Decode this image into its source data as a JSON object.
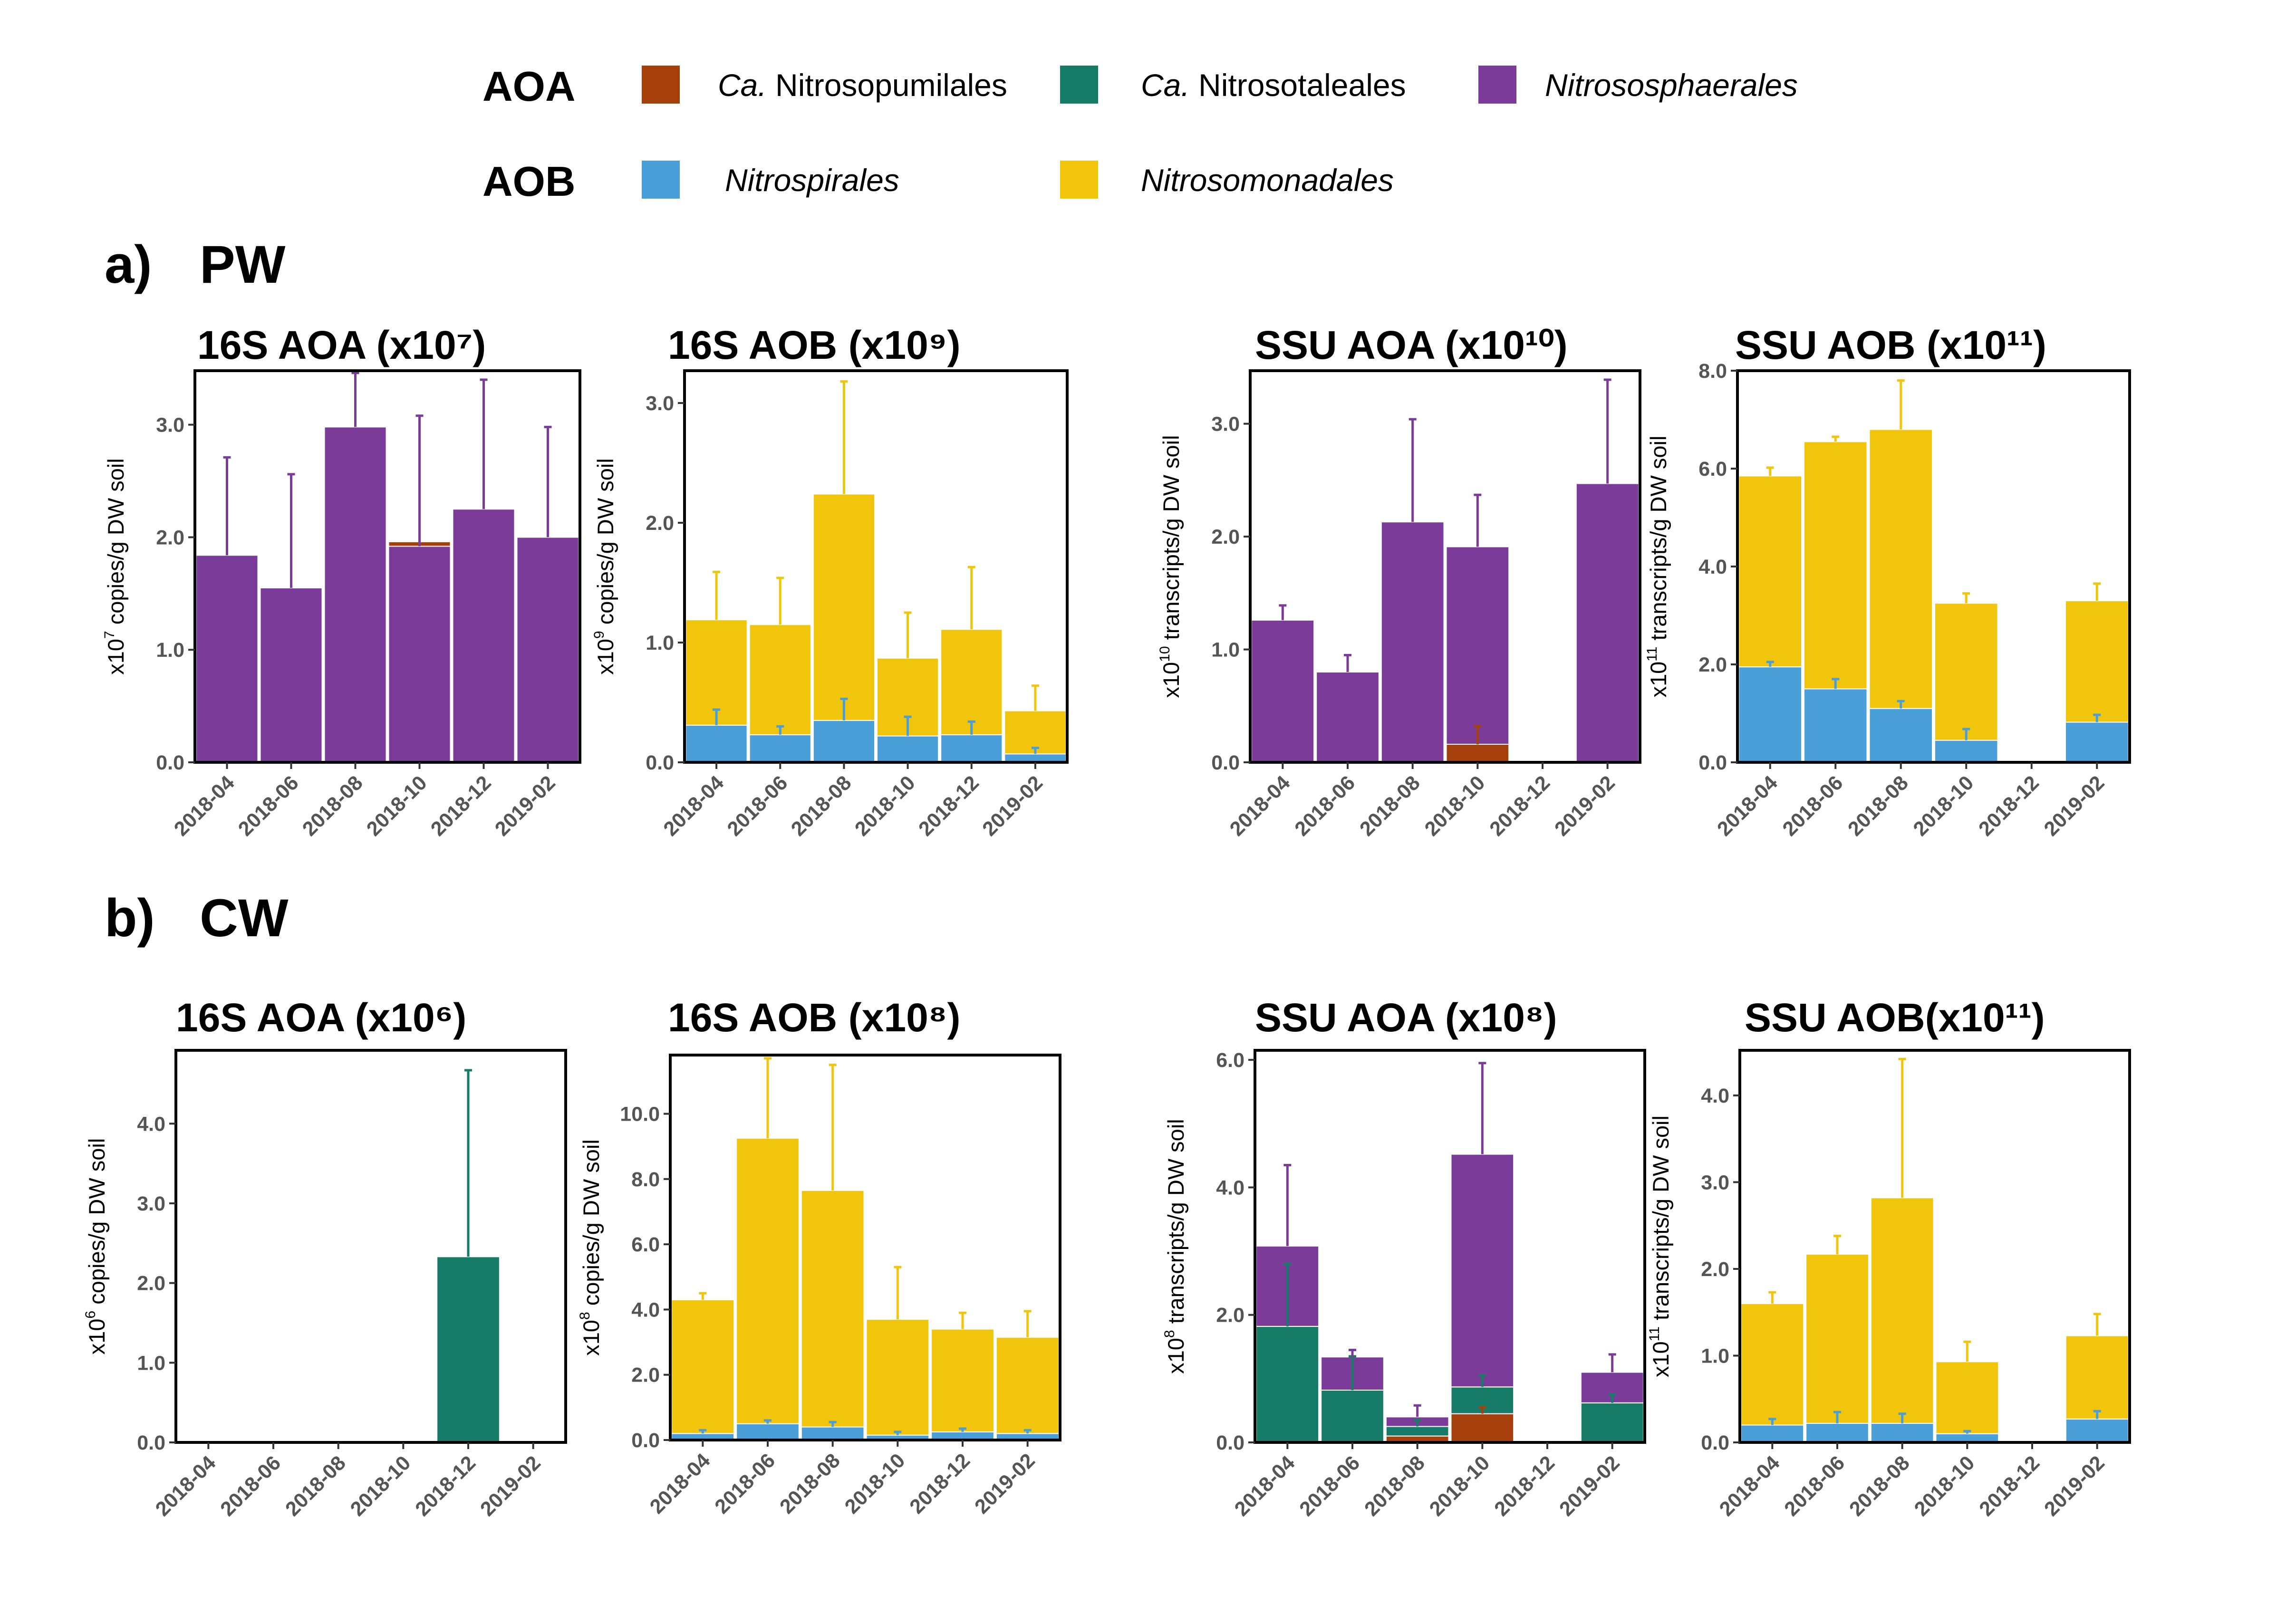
{
  "legend": {
    "groups": [
      {
        "label": "AOA",
        "items": [
          {
            "prefix": "Ca.",
            "name": "Nitrosopumilales",
            "color": "#A53F0B"
          },
          {
            "prefix": "Ca.",
            "name": "Nitrosotaleales",
            "color": "#167C67"
          },
          {
            "prefix": "",
            "name": "Nitrososphaerales",
            "color": "#7B3B98"
          }
        ]
      },
      {
        "label": "AOB",
        "items": [
          {
            "prefix": "",
            "name": "Nitrospirales",
            "color": "#4A9FD9"
          },
          {
            "prefix": "",
            "name": "Nitrosomonadales",
            "color": "#F0C50C"
          }
        ]
      }
    ]
  },
  "sections": [
    {
      "tag": "a)",
      "name": "PW"
    },
    {
      "tag": "b)",
      "name": "CW"
    }
  ],
  "colors": {
    "Ca. Nitrosopumilales": "#A53F0B",
    "Ca. Nitrosotaleales": "#167C67",
    "Nitrososphaerales": "#7B3B98",
    "Nitrospirales": "#4A9FD9",
    "Nitrosomonadales": "#F0C50C"
  },
  "chart_data": [
    {
      "type": "bar",
      "stacked": true,
      "title": "16S AOA (x10⁷)",
      "ylabel_base": "x10",
      "ylabel_exp": "7",
      "ylabel_rest": " copies/g DW soil",
      "categories": [
        "2018-04",
        "2018-06",
        "2018-08",
        "2018-10",
        "2018-12",
        "2019-02"
      ],
      "ylim": [
        0,
        3.48
      ],
      "yticks": [
        "0.0",
        "1.0",
        "2.0",
        "3.0"
      ],
      "series": [
        {
          "name": "Nitrososphaerales",
          "values": [
            1.84,
            1.55,
            2.98,
            1.92,
            2.25,
            2.0
          ],
          "errors": [
            2.71,
            2.56,
            3.46,
            3.08,
            3.4,
            2.98
          ]
        },
        {
          "name": "Ca. Nitrosopumilales",
          "values": [
            0,
            0,
            0,
            0.04,
            0,
            0
          ],
          "errors": [
            null,
            null,
            null,
            null,
            null,
            null
          ]
        }
      ]
    },
    {
      "type": "bar",
      "stacked": true,
      "title": "16S AOB (x10⁹)",
      "ylabel_base": "x10",
      "ylabel_exp": "9",
      "ylabel_rest": " copies/g DW soil",
      "categories": [
        "2018-04",
        "2018-06",
        "2018-08",
        "2018-10",
        "2018-12",
        "2019-02"
      ],
      "ylim": [
        0,
        3.27
      ],
      "yticks": [
        "0.0",
        "1.0",
        "2.0",
        "3.0"
      ],
      "series": [
        {
          "name": "Nitrospirales",
          "values": [
            0.31,
            0.23,
            0.35,
            0.22,
            0.23,
            0.07
          ],
          "errors": [
            0.44,
            0.3,
            0.53,
            0.38,
            0.34,
            0.12
          ]
        },
        {
          "name": "Nitrosomonadales",
          "values": [
            0.88,
            0.92,
            1.89,
            0.65,
            0.88,
            0.36
          ],
          "errors": [
            1.59,
            1.54,
            3.18,
            1.25,
            1.63,
            0.64
          ]
        }
      ]
    },
    {
      "type": "bar",
      "stacked": true,
      "title": "SSU AOA (x10¹⁰)",
      "ylabel_base": "x10",
      "ylabel_exp": "10",
      "ylabel_rest": " transcripts/g DW soil",
      "categories": [
        "2018-04",
        "2018-06",
        "2018-08",
        "2018-10",
        "2018-12",
        "2019-02"
      ],
      "ylim": [
        0,
        3.47
      ],
      "yticks": [
        "0.0",
        "1.0",
        "2.0",
        "3.0"
      ],
      "series": [
        {
          "name": "Ca. Nitrosopumilales",
          "values": [
            0,
            0,
            0,
            0.16,
            0,
            0
          ],
          "errors": [
            null,
            null,
            null,
            0.32,
            null,
            null
          ]
        },
        {
          "name": "Nitrososphaerales",
          "values": [
            1.26,
            0.8,
            2.13,
            1.75,
            0,
            2.47
          ],
          "errors": [
            1.39,
            0.95,
            3.04,
            2.37,
            null,
            3.39
          ]
        }
      ]
    },
    {
      "type": "bar",
      "stacked": true,
      "title": "SSU AOB (x10¹¹)",
      "ylabel_base": "x10",
      "ylabel_exp": "11",
      "ylabel_rest": " transcripts/g DW soil",
      "categories": [
        "2018-04",
        "2018-06",
        "2018-08",
        "2018-10",
        "2018-12",
        "2019-02"
      ],
      "ylim": [
        0,
        8.0
      ],
      "yticks": [
        "0.0",
        "2.0",
        "4.0",
        "6.0",
        "8.0"
      ],
      "series": [
        {
          "name": "Nitrospirales",
          "values": [
            1.95,
            1.5,
            1.1,
            0.45,
            0,
            0.82
          ],
          "errors": [
            2.05,
            1.7,
            1.25,
            0.68,
            null,
            0.97
          ]
        },
        {
          "name": "Nitrosomonadales",
          "values": [
            3.9,
            5.05,
            5.7,
            2.8,
            0,
            2.48
          ],
          "errors": [
            6.02,
            6.65,
            7.8,
            3.45,
            null,
            3.65
          ]
        }
      ]
    },
    {
      "type": "bar",
      "stacked": true,
      "title": "16S AOA (x10⁶)",
      "ylabel_base": "x10",
      "ylabel_exp": "6",
      "ylabel_rest": " copies/g DW soil",
      "categories": [
        "2018-04",
        "2018-06",
        "2018-08",
        "2018-10",
        "2018-12",
        "2019-02"
      ],
      "ylim": [
        0,
        4.92
      ],
      "yticks": [
        "0.0",
        "1.0",
        "2.0",
        "3.0",
        "4.0"
      ],
      "series": [
        {
          "name": "Ca. Nitrosotaleales",
          "values": [
            0,
            0,
            0,
            0,
            2.33,
            0
          ],
          "errors": [
            null,
            null,
            null,
            null,
            4.67,
            null
          ]
        }
      ]
    },
    {
      "type": "bar",
      "stacked": true,
      "title": "16S AOB (x10⁸)",
      "ylabel_base": "x10",
      "ylabel_exp": "8",
      "ylabel_rest": " copies/g DW soil",
      "categories": [
        "2018-04",
        "2018-06",
        "2018-08",
        "2018-10",
        "2018-12",
        "2019-02"
      ],
      "ylim": [
        0,
        11.8
      ],
      "yticks": [
        "0.0",
        "2.0",
        "4.0",
        "6.0",
        "8.0",
        "10.0"
      ],
      "series": [
        {
          "name": "Nitrospirales",
          "values": [
            0.2,
            0.5,
            0.4,
            0.15,
            0.25,
            0.2
          ],
          "errors": [
            0.3,
            0.6,
            0.55,
            0.25,
            0.35,
            0.3
          ]
        },
        {
          "name": "Nitrosomonadales",
          "values": [
            4.1,
            8.75,
            7.25,
            3.55,
            3.15,
            2.95
          ],
          "errors": [
            4.5,
            11.7,
            11.5,
            5.3,
            3.9,
            3.95
          ]
        }
      ]
    },
    {
      "type": "bar",
      "stacked": true,
      "title": "SSU AOA (x10⁸)",
      "ylabel_base": "x10",
      "ylabel_exp": "8",
      "ylabel_rest": " transcripts/g DW soil",
      "categories": [
        "2018-04",
        "2018-06",
        "2018-08",
        "2018-10",
        "2018-12",
        "2019-02"
      ],
      "ylim": [
        0,
        6.15
      ],
      "yticks": [
        "0.0",
        "2.0",
        "4.0",
        "6.0"
      ],
      "series": [
        {
          "name": "Ca. Nitrosopumilales",
          "values": [
            0,
            0,
            0.1,
            0.45,
            0,
            0
          ],
          "errors": [
            null,
            null,
            null,
            0.55,
            null,
            null
          ]
        },
        {
          "name": "Ca. Nitrosotaleales",
          "values": [
            1.82,
            0.82,
            0.15,
            0.42,
            0,
            0.62
          ],
          "errors": [
            2.8,
            1.35,
            0.35,
            1.05,
            null,
            0.75
          ]
        },
        {
          "name": "Nitrososphaerales",
          "values": [
            1.26,
            0.52,
            0.15,
            3.65,
            0,
            0.48
          ],
          "errors": [
            4.35,
            1.45,
            0.58,
            5.95,
            null,
            1.38
          ]
        }
      ]
    },
    {
      "type": "bar",
      "stacked": true,
      "title": "SSU AOB(x10¹¹)",
      "ylabel_base": "x10",
      "ylabel_exp": "11",
      "ylabel_rest": " transcripts/g DW soil",
      "categories": [
        "2018-04",
        "2018-06",
        "2018-08",
        "2018-10",
        "2018-12",
        "2019-02"
      ],
      "ylim": [
        0,
        4.52
      ],
      "yticks": [
        "0.0",
        "1.0",
        "2.0",
        "3.0",
        "4.0"
      ],
      "series": [
        {
          "name": "Nitrospirales",
          "values": [
            0.2,
            0.22,
            0.22,
            0.1,
            0,
            0.27
          ],
          "errors": [
            0.27,
            0.35,
            0.33,
            0.13,
            null,
            0.36
          ]
        },
        {
          "name": "Nitrosomonadales",
          "values": [
            1.4,
            1.95,
            2.6,
            0.83,
            0,
            0.96
          ],
          "errors": [
            1.73,
            2.38,
            4.42,
            1.16,
            null,
            1.48
          ]
        }
      ]
    }
  ]
}
